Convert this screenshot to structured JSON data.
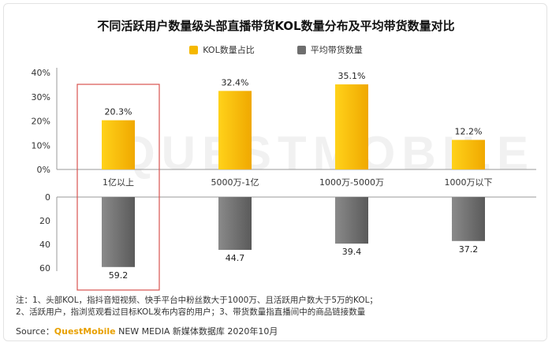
{
  "title": "不同活跃用户数量级头部直播带货KOL数量分布及平均带货数量对比",
  "legend": {
    "kol_share": "KOL数量占比",
    "avg_goods": "平均带货数量"
  },
  "colors": {
    "kol_share": "#f5b800",
    "avg_goods": "#6e6e6e",
    "highlight_box": "#d9534f"
  },
  "watermark": "QUESTMOBILE",
  "chart_data": {
    "type": "bar",
    "categories": [
      "1亿以上",
      "5000万-1亿",
      "1000万-5000万",
      "1000万以下"
    ],
    "series": [
      {
        "name": "KOL数量占比",
        "values": [
          20.3,
          32.4,
          35.1,
          12.2
        ],
        "labels": [
          "20.3%",
          "32.4%",
          "35.1%",
          "12.2%"
        ],
        "axis_ticks": [
          "0%",
          "10%",
          "20%",
          "30%",
          "40%"
        ],
        "ylim": [
          0,
          40
        ]
      },
      {
        "name": "平均带货数量",
        "values": [
          59.2,
          44.7,
          39.4,
          37.2
        ],
        "labels": [
          "59.2",
          "44.7",
          "39.4",
          "37.2"
        ],
        "axis_ticks": [
          "0",
          "20",
          "40",
          "60"
        ],
        "ylim": [
          0,
          60
        ]
      }
    ],
    "highlighted_category": "1亿以上"
  },
  "notes": {
    "line1": "注：1、头部KOL，指抖音短视频、快手平台中粉丝数大于1000万、且活跃用户数大于5万的KOL；",
    "line2": "2、活跃用户，指浏览观看过目标KOL发布内容的用户；3、带货数量指直播间中的商品链接数量"
  },
  "source": {
    "prefix": "Source：",
    "brand": "QuestMobile",
    "suffix": " NEW MEDIA 新媒体数据库 2020年10月"
  }
}
